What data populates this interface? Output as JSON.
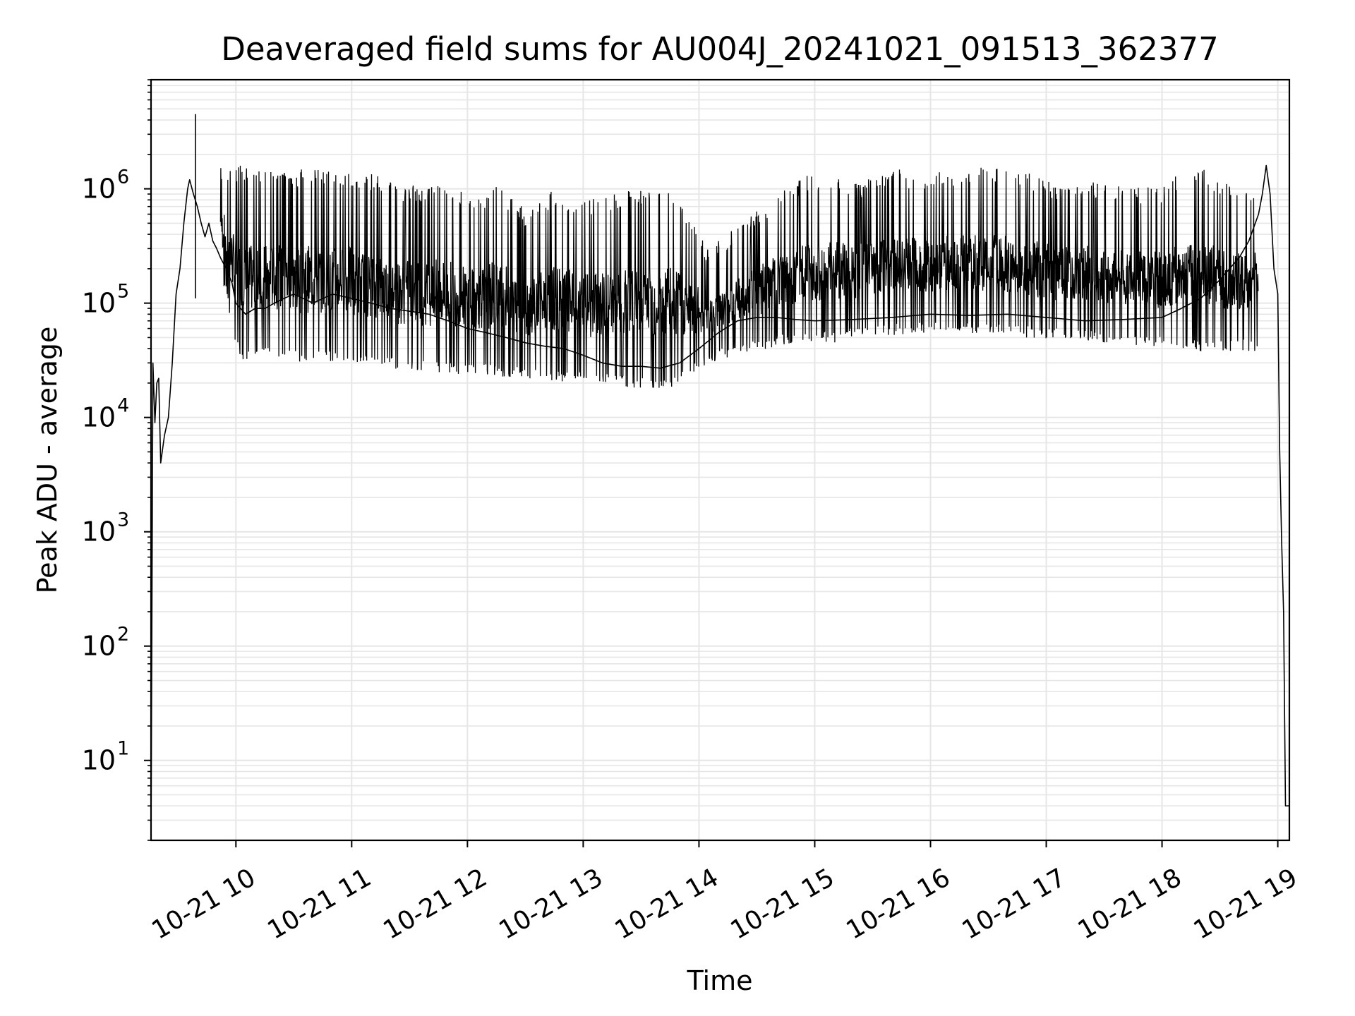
{
  "chart_data": {
    "type": "line",
    "title": "Deaveraged field sums for AU004J_20241021_091513_362377",
    "xlabel": "Time",
    "ylabel": "Peak ADU - average",
    "yscale": "log",
    "grid": true,
    "line_color": "#000000",
    "grid_color": "#e6e6e6",
    "xlim": [
      "2024-10-21 09:16",
      "2024-10-21 19:06"
    ],
    "ylim": [
      2,
      9000000
    ],
    "x_ticks": [
      {
        "value": "2024-10-21 10:00",
        "label": "10-21 10"
      },
      {
        "value": "2024-10-21 11:00",
        "label": "10-21 11"
      },
      {
        "value": "2024-10-21 12:00",
        "label": "10-21 12"
      },
      {
        "value": "2024-10-21 13:00",
        "label": "10-21 13"
      },
      {
        "value": "2024-10-21 14:00",
        "label": "10-21 14"
      },
      {
        "value": "2024-10-21 15:00",
        "label": "10-21 15"
      },
      {
        "value": "2024-10-21 16:00",
        "label": "10-21 16"
      },
      {
        "value": "2024-10-21 17:00",
        "label": "10-21 17"
      },
      {
        "value": "2024-10-21 18:00",
        "label": "10-21 18"
      },
      {
        "value": "2024-10-21 19:00",
        "label": "10-21 19"
      }
    ],
    "y_ticks": [
      {
        "value": 10,
        "base": "10",
        "exp": "1"
      },
      {
        "value": 100,
        "base": "10",
        "exp": "2"
      },
      {
        "value": 1000,
        "base": "10",
        "exp": "3"
      },
      {
        "value": 10000,
        "base": "10",
        "exp": "4"
      },
      {
        "value": 100000,
        "base": "10",
        "exp": "5"
      },
      {
        "value": 1000000,
        "base": "10",
        "exp": "6"
      }
    ],
    "series": [
      {
        "x": [
          "2024-10-21 09:16",
          "2024-10-21 09:17",
          "2024-10-21 09:18",
          "2024-10-21 09:19",
          "2024-10-21 09:20",
          "2024-10-21 09:21",
          "2024-10-21 09:23",
          "2024-10-21 09:25",
          "2024-10-21 09:27",
          "2024-10-21 09:29",
          "2024-10-21 09:31",
          "2024-10-21 09:33",
          "2024-10-21 09:35",
          "2024-10-21 09:36",
          "2024-10-21 09:38",
          "2024-10-21 09:40",
          "2024-10-21 09:42",
          "2024-10-21 09:44",
          "2024-10-21 09:46",
          "2024-10-21 09:48",
          "2024-10-21 09:50",
          "2024-10-21 09:52",
          "2024-10-21 09:55",
          "2024-10-21 09:58",
          "2024-10-21 10:00",
          "2024-10-21 10:05",
          "2024-10-21 10:10",
          "2024-10-21 10:15",
          "2024-10-21 10:20",
          "2024-10-21 10:25",
          "2024-10-21 10:30",
          "2024-10-21 10:40",
          "2024-10-21 10:50",
          "2024-10-21 11:00",
          "2024-10-21 11:10",
          "2024-10-21 11:20",
          "2024-10-21 11:30",
          "2024-10-21 11:40",
          "2024-10-21 11:50",
          "2024-10-21 12:00",
          "2024-10-21 12:10",
          "2024-10-21 12:20",
          "2024-10-21 12:30",
          "2024-10-21 12:40",
          "2024-10-21 12:50",
          "2024-10-21 13:00",
          "2024-10-21 13:10",
          "2024-10-21 13:20",
          "2024-10-21 13:30",
          "2024-10-21 13:40",
          "2024-10-21 13:50",
          "2024-10-21 14:00",
          "2024-10-21 14:10",
          "2024-10-21 14:20",
          "2024-10-21 14:30",
          "2024-10-21 14:40",
          "2024-10-21 14:50",
          "2024-10-21 15:00",
          "2024-10-21 15:20",
          "2024-10-21 15:40",
          "2024-10-21 16:00",
          "2024-10-21 16:20",
          "2024-10-21 16:40",
          "2024-10-21 17:00",
          "2024-10-21 17:20",
          "2024-10-21 17:40",
          "2024-10-21 18:00",
          "2024-10-21 18:10",
          "2024-10-21 18:20",
          "2024-10-21 18:30",
          "2024-10-21 18:40",
          "2024-10-21 18:45",
          "2024-10-21 18:50",
          "2024-10-21 18:52",
          "2024-10-21 18:54",
          "2024-10-21 18:56",
          "2024-10-21 18:58",
          "2024-10-21 19:00",
          "2024-10-21 19:01",
          "2024-10-21 19:02",
          "2024-10-21 19:03",
          "2024-10-21 19:04",
          "2024-10-21 19:05",
          "2024-10-21 19:06"
        ],
        "values": [
          2,
          30000,
          9000,
          20000,
          22000,
          4000,
          7000,
          10000,
          30000,
          120000,
          200000,
          500000,
          1000000,
          1200000,
          900000,
          700000,
          500000,
          380000,
          500000,
          350000,
          300000,
          250000,
          200000,
          150000,
          100000,
          80000,
          90000,
          90000,
          100000,
          110000,
          120000,
          100000,
          120000,
          110000,
          100000,
          90000,
          85000,
          80000,
          70000,
          60000,
          55000,
          50000,
          45000,
          42000,
          40000,
          35000,
          30000,
          28000,
          28000,
          27000,
          30000,
          40000,
          55000,
          70000,
          75000,
          75000,
          72000,
          70000,
          72000,
          75000,
          80000,
          78000,
          80000,
          75000,
          70000,
          72000,
          75000,
          90000,
          110000,
          160000,
          250000,
          350000,
          600000,
          900000,
          1600000,
          900000,
          200000,
          120000,
          5000,
          800,
          200,
          4,
          4,
          4
        ]
      }
    ],
    "spikes": {
      "x": [
        "2024-10-21 09:39",
        "2024-10-21 09:52",
        "2024-10-21 10:00",
        "2024-10-21 10:05",
        "2024-10-21 10:10",
        "2024-10-21 10:15",
        "2024-10-21 10:20",
        "2024-10-21 10:25",
        "2024-10-21 10:30",
        "2024-10-21 10:35",
        "2024-10-21 10:40",
        "2024-10-21 10:45",
        "2024-10-21 10:50",
        "2024-10-21 10:55",
        "2024-10-21 11:00",
        "2024-10-21 11:05",
        "2024-10-21 11:10",
        "2024-10-21 11:15",
        "2024-10-21 11:20",
        "2024-10-21 11:25",
        "2024-10-21 11:30",
        "2024-10-21 11:40",
        "2024-10-21 11:45",
        "2024-10-21 11:55",
        "2024-10-21 12:05",
        "2024-10-21 12:15",
        "2024-10-21 12:30",
        "2024-10-21 12:45",
        "2024-10-21 13:00",
        "2024-10-21 13:15",
        "2024-10-21 13:30",
        "2024-10-21 13:45",
        "2024-10-21 14:05",
        "2024-10-21 14:35",
        "2024-10-21 14:55",
        "2024-10-21 15:10",
        "2024-10-21 15:20",
        "2024-10-21 15:40",
        "2024-10-21 15:55",
        "2024-10-21 16:10",
        "2024-10-21 16:35",
        "2024-10-21 16:50",
        "2024-10-21 17:05",
        "2024-10-21 17:20",
        "2024-10-21 17:40",
        "2024-10-21 18:00",
        "2024-10-21 18:10",
        "2024-10-21 18:20",
        "2024-10-21 18:35"
      ],
      "high": [
        4500000,
        1650000,
        1650000,
        1550000,
        1500000,
        1500000,
        1450000,
        1450000,
        1450000,
        1500000,
        1550000,
        1500000,
        1500000,
        1450000,
        1450000,
        1400000,
        1350000,
        1300000,
        1200000,
        1000000,
        1100000,
        1000000,
        1200000,
        1000000,
        800000,
        1150000,
        650000,
        1000000,
        800000,
        900000,
        1000000,
        1150000,
        300000,
        750000,
        1300000,
        1400000,
        1100000,
        1600000,
        1300000,
        1500000,
        1550000,
        1450000,
        1100000,
        1200000,
        1050000,
        1050000,
        1400000,
        1600000,
        1100000
      ],
      "low": [
        110000,
        200000,
        40000,
        30000,
        32000,
        34000,
        35000,
        33000,
        32000,
        30000,
        32000,
        31000,
        30000,
        32000,
        30000,
        28000,
        28000,
        28000,
        27000,
        26000,
        25000,
        25000,
        24000,
        24000,
        24000,
        23000,
        22000,
        21000,
        20000,
        19000,
        18000,
        17000,
        30000,
        40000,
        45000,
        45000,
        50000,
        52000,
        55000,
        55000,
        52000,
        50000,
        48000,
        46000,
        42000,
        40000,
        40000,
        38000,
        38000
      ]
    }
  }
}
